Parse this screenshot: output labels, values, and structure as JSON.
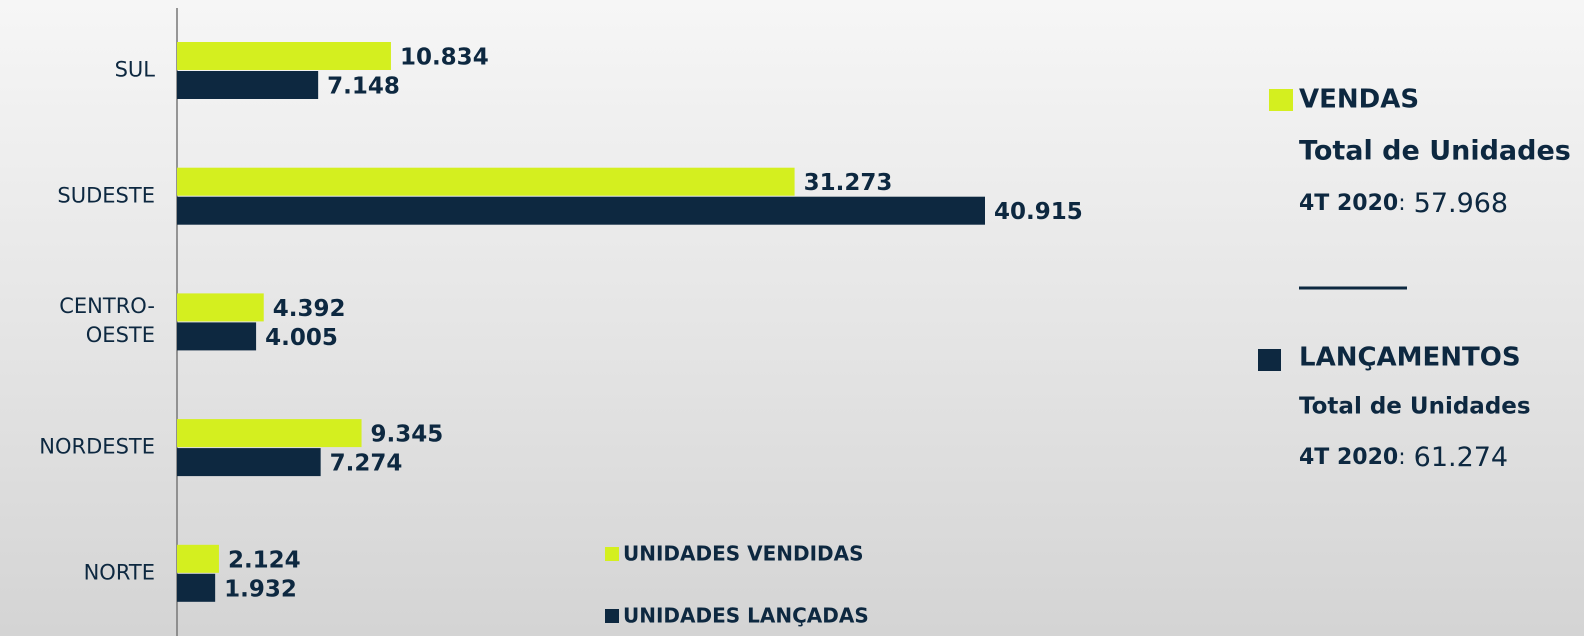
{
  "chart_data": {
    "type": "bar",
    "orientation": "horizontal",
    "categories": [
      "SUL",
      "SUDESTE",
      "CENTRO-OESTE",
      "NORDESTE",
      "NORTE"
    ],
    "series": [
      {
        "name": "UNIDADES VENDIDAS",
        "color": "#d4ef1f",
        "values": [
          10834,
          31273,
          4392,
          9345,
          2124
        ],
        "value_labels": [
          "10.834",
          "31.273",
          "4.392",
          "9.345",
          "2.124"
        ]
      },
      {
        "name": "UNIDADES LANÇADAS",
        "color": "#0d2840",
        "values": [
          7148,
          40915,
          4005,
          7274,
          1932
        ],
        "value_labels": [
          "7.148",
          "40.915",
          "4.005",
          "7.274",
          "1.932"
        ]
      }
    ]
  },
  "summary": [
    {
      "title": "VENDAS",
      "color": "#d4ef1f",
      "subtitle": "Total de Unidades",
      "period": "4T 2020",
      "separator": ":",
      "value": "57.968"
    },
    {
      "title": "LANÇAMENTOS",
      "color": "#0d2840",
      "subtitle": "Total de Unidades",
      "period": "4T 2020",
      "separator": ":",
      "value": "61.274"
    }
  ]
}
